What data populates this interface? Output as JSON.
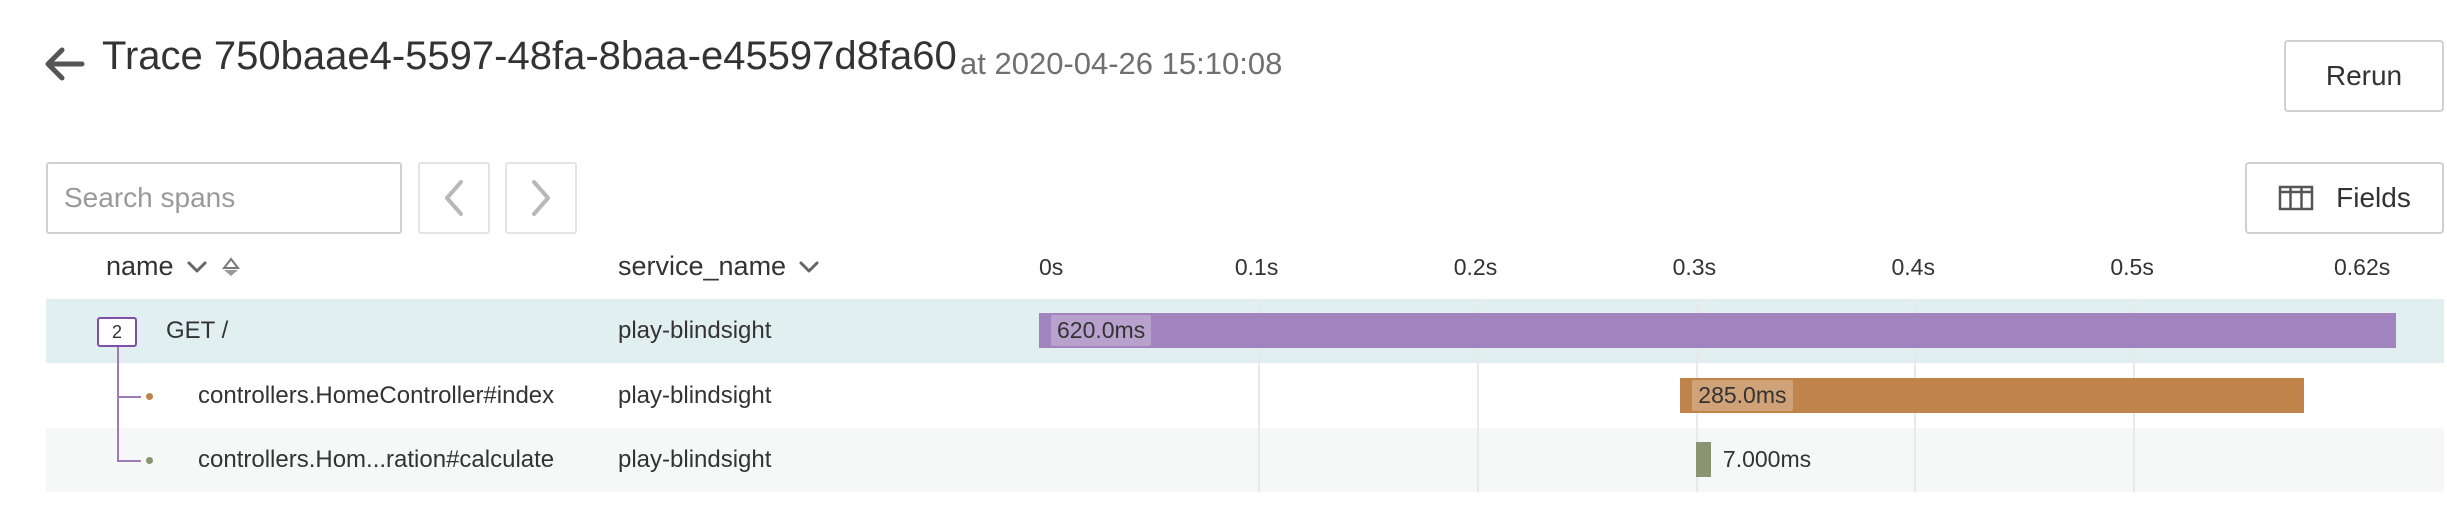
{
  "header": {
    "title": "Trace 750baae4-5597-48fa-8baa-e45597d8fa60",
    "timestamp": "at 2020-04-26 15:10:08",
    "rerun_label": "Rerun",
    "fields_label": "Fields"
  },
  "search": {
    "placeholder": "Search spans",
    "value": ""
  },
  "columns": {
    "name": "name",
    "service": "service_name"
  },
  "timeline": {
    "unit": "s",
    "total_ms": 620,
    "ticks": [
      {
        "label": "0s",
        "ms": 0
      },
      {
        "label": "0.1s",
        "ms": 100
      },
      {
        "label": "0.2s",
        "ms": 200
      },
      {
        "label": "0.3s",
        "ms": 300
      },
      {
        "label": "0.4s",
        "ms": 400
      },
      {
        "label": "0.5s",
        "ms": 500
      },
      {
        "label": "0.62s",
        "ms": 620
      }
    ]
  },
  "spans": [
    {
      "name": "GET /",
      "service": "play-blindsight",
      "start_ms": 0,
      "duration_ms": 620,
      "duration_label": "620.0ms",
      "color": "#a183bd",
      "child_count": "2",
      "depth": 0,
      "dot_color": ""
    },
    {
      "name": "controllers.HomeController#index",
      "service": "play-blindsight",
      "start_ms": 293,
      "duration_ms": 285,
      "duration_label": "285.0ms",
      "color": "#c0834a",
      "child_count": "",
      "depth": 1,
      "dot_color": "#c0834a"
    },
    {
      "name": "controllers.Hom...ration#calculate",
      "service": "play-blindsight",
      "start_ms": 300,
      "duration_ms": 7,
      "duration_label": "7.000ms",
      "color": "#8a9470",
      "child_count": "",
      "depth": 1,
      "dot_color": "#8a9470"
    }
  ]
}
